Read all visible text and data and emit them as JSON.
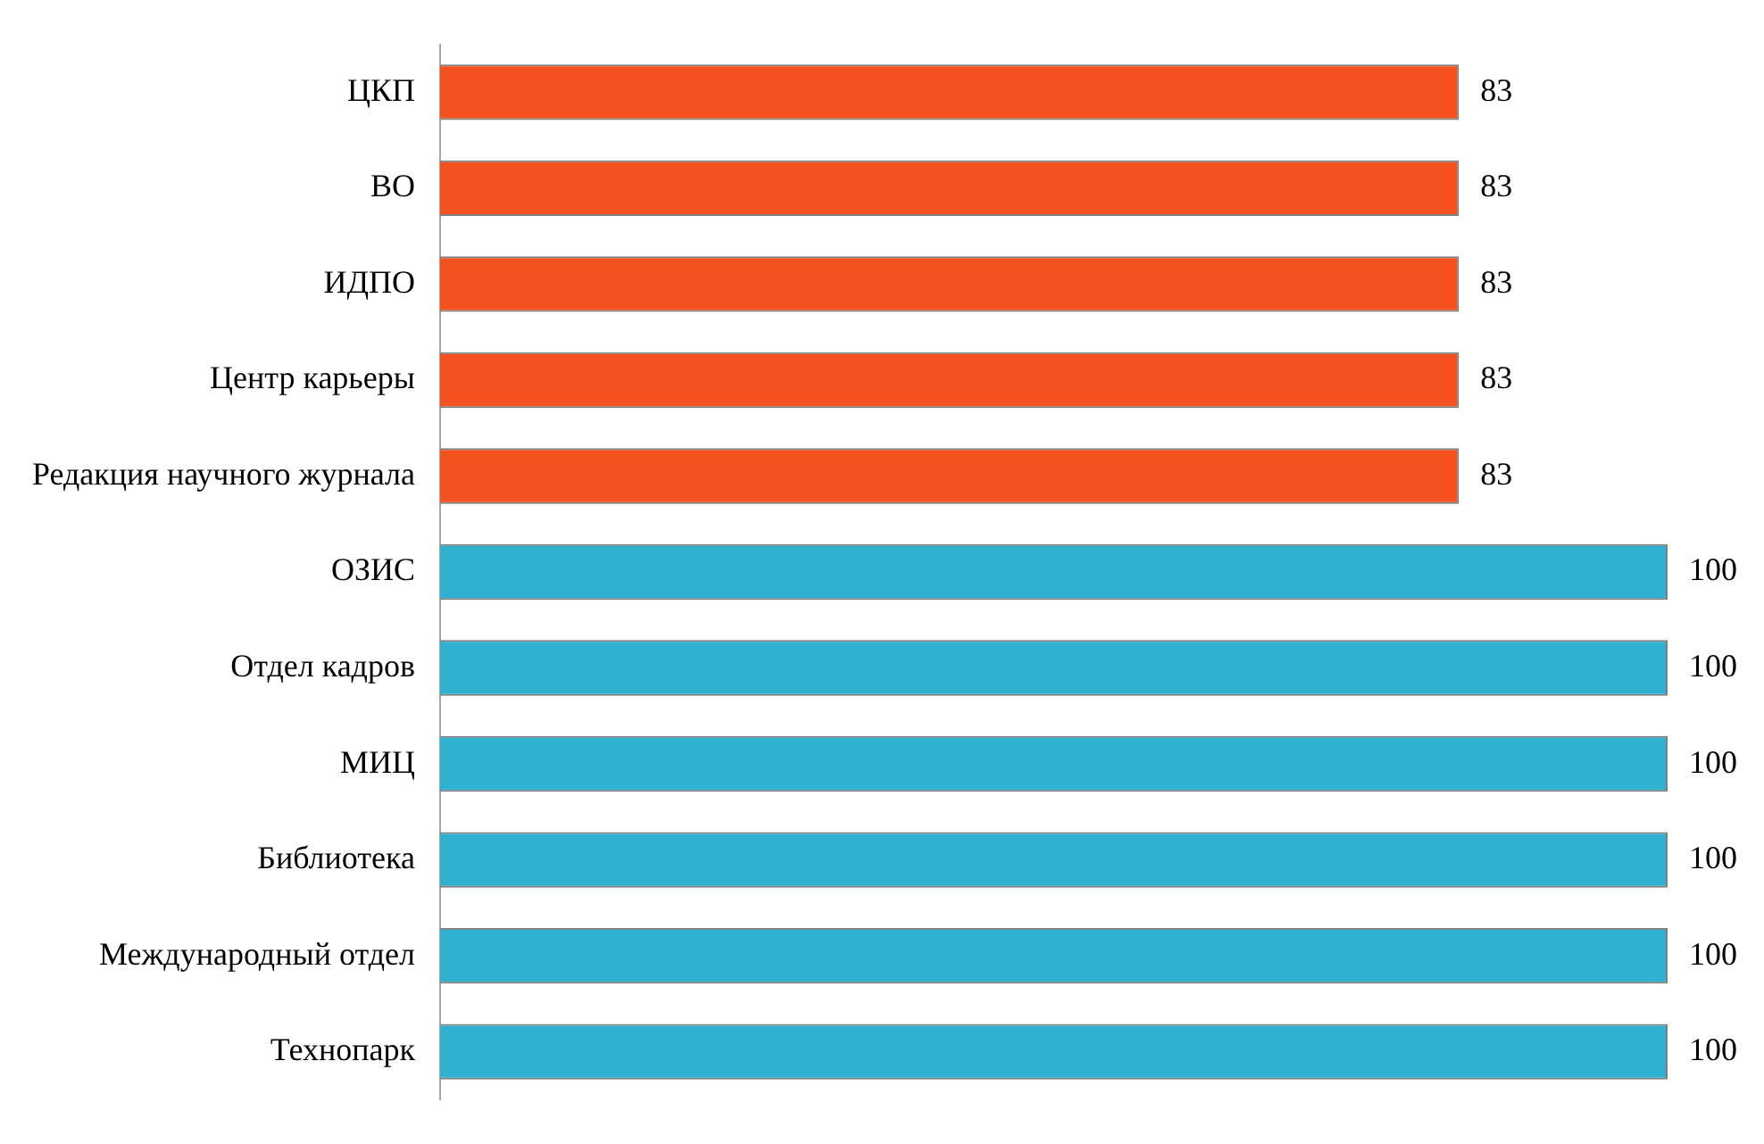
{
  "chart_data": {
    "type": "bar",
    "orientation": "horizontal",
    "categories": [
      "ЦКП",
      "ВО",
      "ИДПО",
      "Центр карьеры",
      "Редакция научного журнала",
      "ОЗИС",
      "Отдел кадров",
      "МИЦ",
      "Библиотека",
      "Международный отдел",
      "Технопарк"
    ],
    "values": [
      83,
      83,
      83,
      83,
      83,
      100,
      100,
      100,
      100,
      100,
      100
    ],
    "colors": [
      "#f4511e",
      "#f4511e",
      "#f4511e",
      "#f4511e",
      "#f4511e",
      "#2fb2d2",
      "#2fb2d2",
      "#2fb2d2",
      "#2fb2d2",
      "#2fb2d2",
      "#2fb2d2"
    ],
    "xlim": [
      0,
      100
    ],
    "data_labels": true,
    "grid": false,
    "legend": false,
    "tick_labels": "y"
  }
}
